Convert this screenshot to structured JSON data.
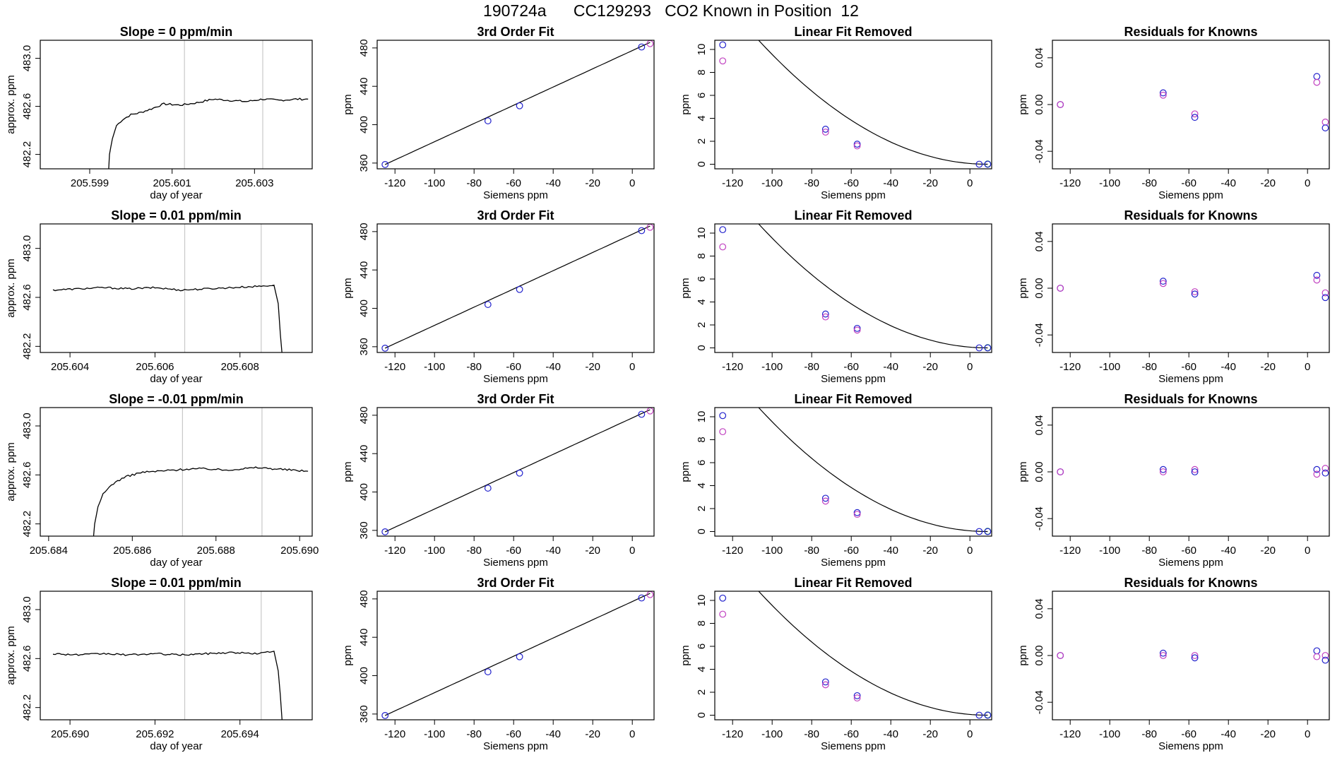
{
  "title": "190724a      CC129293   CO2 Known in Position  12",
  "colors": {
    "line": "#000000",
    "blue": "#2020cc",
    "magenta": "#c040c0",
    "green": "#20a040",
    "red": "#d02020",
    "vline": "#c8c8c8"
  },
  "chart_data": [
    {
      "type": "line",
      "row": 0,
      "panel": "time",
      "title": "Slope =  0  ppm/min",
      "xlabel": "day of year",
      "ylabel": "approx. ppm",
      "xlim": [
        205.5978,
        205.6044
      ],
      "ylim": [
        482.08,
        483.15
      ],
      "xticks": [
        205.599,
        205.601,
        205.603
      ],
      "yticks": [
        482.2,
        482.6,
        483.0
      ],
      "xtick_labels": [
        "205.599",
        "205.601",
        "205.603"
      ],
      "ytick_labels": [
        "482.2",
        "482.6",
        "483.0"
      ],
      "vlines": [
        205.6013,
        205.6032
      ],
      "x": [
        205.59945,
        205.59948,
        205.59955,
        205.59965,
        205.5998,
        205.6,
        205.60025,
        205.6005,
        205.6008,
        205.6012,
        205.6016,
        205.602,
        205.6024,
        205.6028,
        205.6032,
        205.6036,
        205.604,
        205.6043
      ],
      "y": [
        482.0,
        482.2,
        482.33,
        482.44,
        482.49,
        482.53,
        482.55,
        482.58,
        482.62,
        482.61,
        482.63,
        482.66,
        482.65,
        482.64,
        482.66,
        482.65,
        482.66,
        482.66
      ],
      "noise": 0.008
    },
    {
      "type": "line",
      "row": 1,
      "panel": "time",
      "title": "Slope =  0.01  ppm/min",
      "xlabel": "day of year",
      "ylabel": "approx. ppm",
      "xlim": [
        205.6033,
        205.6097
      ],
      "ylim": [
        482.15,
        483.2
      ],
      "xticks": [
        205.604,
        205.606,
        205.608
      ],
      "yticks": [
        482.2,
        482.6,
        483.0
      ],
      "xtick_labels": [
        "205.604",
        "205.606",
        "205.608"
      ],
      "ytick_labels": [
        "482.2",
        "482.6",
        "483.0"
      ],
      "vlines": [
        205.6067,
        205.6085
      ],
      "x": [
        205.6036,
        205.6042,
        205.6048,
        205.6054,
        205.606,
        205.6066,
        205.6072,
        205.6078,
        205.6084,
        205.6088,
        205.6089,
        205.60895,
        205.609
      ],
      "y": [
        482.66,
        482.67,
        482.68,
        482.67,
        482.68,
        482.66,
        482.67,
        482.68,
        482.69,
        482.7,
        482.55,
        482.3,
        482.1
      ],
      "noise": 0.007
    },
    {
      "type": "line",
      "row": 2,
      "panel": "time",
      "title": "Slope =  -0.01  ppm/min",
      "xlabel": "day of year",
      "ylabel": "approx. ppm",
      "xlim": [
        205.6838,
        205.6903
      ],
      "ylim": [
        482.1,
        483.15
      ],
      "xticks": [
        205.684,
        205.686,
        205.688,
        205.69
      ],
      "yticks": [
        482.2,
        482.6,
        483.0
      ],
      "xtick_labels": [
        "205.684",
        "205.686",
        "205.688",
        "205.690"
      ],
      "ytick_labels": [
        "482.2",
        "482.6",
        "483.0"
      ],
      "vlines": [
        205.6872,
        205.6891
      ],
      "x": [
        205.68505,
        205.6851,
        205.68518,
        205.6853,
        205.6855,
        205.6858,
        205.6862,
        205.6866,
        205.687,
        205.6874,
        205.6878,
        205.6882,
        205.6886,
        205.689,
        205.6894,
        205.6898,
        205.6902
      ],
      "y": [
        482.0,
        482.2,
        482.34,
        482.44,
        482.52,
        482.58,
        482.62,
        482.63,
        482.64,
        482.65,
        482.65,
        482.64,
        482.65,
        482.66,
        482.65,
        482.64,
        482.63
      ],
      "noise": 0.008
    },
    {
      "type": "line",
      "row": 3,
      "panel": "time",
      "title": "Slope =  0.01  ppm/min",
      "xlabel": "day of year",
      "ylabel": "approx. ppm",
      "xlim": [
        205.6893,
        205.6957
      ],
      "ylim": [
        482.1,
        483.15
      ],
      "xticks": [
        205.69,
        205.692,
        205.694
      ],
      "yticks": [
        482.2,
        482.6,
        483.0
      ],
      "xtick_labels": [
        "205.690",
        "205.692",
        "205.694"
      ],
      "ytick_labels": [
        "482.2",
        "482.6",
        "483.0"
      ],
      "vlines": [
        205.6927,
        205.6945
      ],
      "x": [
        205.6896,
        205.6902,
        205.6908,
        205.6914,
        205.692,
        205.6926,
        205.6932,
        205.6938,
        205.6944,
        205.6948,
        205.6949,
        205.69495,
        205.695
      ],
      "y": [
        482.64,
        482.63,
        482.64,
        482.63,
        482.64,
        482.63,
        482.64,
        482.65,
        482.64,
        482.66,
        482.5,
        482.3,
        482.05
      ],
      "noise": 0.007
    },
    {
      "type": "scatter",
      "row": 0,
      "panel": "fit",
      "title": "3rd Order Fit",
      "xlabel": "Siemens ppm",
      "ylabel": "ppm",
      "xlim": [
        -129,
        11
      ],
      "ylim": [
        354,
        488
      ],
      "xticks": [
        -120,
        -100,
        -80,
        -60,
        -40,
        -20,
        0
      ],
      "yticks": [
        360,
        400,
        440,
        480
      ],
      "xtick_labels": [
        "-120",
        "-100",
        "-80",
        "-60",
        "-40",
        "-20",
        "0"
      ],
      "ytick_labels": [
        "360",
        "400",
        "440",
        "480"
      ],
      "x": [
        -125,
        -73,
        -57,
        4.7,
        9
      ],
      "y": [
        358.5,
        404,
        419.7,
        481,
        484.5
      ],
      "point_colors": [
        "blue",
        "blue",
        "blue",
        "blue",
        "magenta"
      ]
    },
    {
      "type": "scatter",
      "row": 1,
      "panel": "fit",
      "title": "3rd Order Fit",
      "xlabel": "Siemens ppm",
      "ylabel": "ppm",
      "xlim": [
        -129,
        11
      ],
      "ylim": [
        354,
        488
      ],
      "xticks": [
        -120,
        -100,
        -80,
        -60,
        -40,
        -20,
        0
      ],
      "yticks": [
        360,
        400,
        440,
        480
      ],
      "xtick_labels": [
        "-120",
        "-100",
        "-80",
        "-60",
        "-40",
        "-20",
        "0"
      ],
      "ytick_labels": [
        "360",
        "400",
        "440",
        "480"
      ],
      "x": [
        -125,
        -73,
        -57,
        4.7,
        9
      ],
      "y": [
        358.5,
        404,
        419.7,
        481,
        484.5
      ],
      "point_colors": [
        "blue",
        "blue",
        "blue",
        "blue",
        "magenta"
      ]
    },
    {
      "type": "scatter",
      "row": 2,
      "panel": "fit",
      "title": "3rd Order Fit",
      "xlabel": "Siemens ppm",
      "ylabel": "ppm",
      "xlim": [
        -129,
        11
      ],
      "ylim": [
        354,
        488
      ],
      "xticks": [
        -120,
        -100,
        -80,
        -60,
        -40,
        -20,
        0
      ],
      "yticks": [
        360,
        400,
        440,
        480
      ],
      "xtick_labels": [
        "-120",
        "-100",
        "-80",
        "-60",
        "-40",
        "-20",
        "0"
      ],
      "ytick_labels": [
        "360",
        "400",
        "440",
        "480"
      ],
      "x": [
        -125,
        -73,
        -57,
        4.7,
        9
      ],
      "y": [
        358.5,
        404,
        419.7,
        481,
        484.5
      ],
      "point_colors": [
        "blue",
        "blue",
        "blue",
        "blue",
        "magenta"
      ]
    },
    {
      "type": "scatter",
      "row": 3,
      "panel": "fit",
      "title": "3rd Order Fit",
      "xlabel": "Siemens ppm",
      "ylabel": "ppm",
      "xlim": [
        -129,
        11
      ],
      "ylim": [
        354,
        488
      ],
      "xticks": [
        -120,
        -100,
        -80,
        -60,
        -40,
        -20,
        0
      ],
      "yticks": [
        360,
        400,
        440,
        480
      ],
      "xtick_labels": [
        "-120",
        "-100",
        "-80",
        "-60",
        "-40",
        "-20",
        "0"
      ],
      "ytick_labels": [
        "360",
        "400",
        "440",
        "480"
      ],
      "x": [
        -125,
        -73,
        -57,
        4.7,
        9
      ],
      "y": [
        358.5,
        404,
        419.7,
        481,
        484.5
      ],
      "point_colors": [
        "blue",
        "blue",
        "blue",
        "blue",
        "magenta"
      ]
    },
    {
      "type": "scatter",
      "row": 0,
      "panel": "linear",
      "title": "Linear Fit Removed",
      "xlabel": "Siemens ppm",
      "ylabel": "ppm",
      "xlim": [
        -129,
        11
      ],
      "ylim": [
        -0.4,
        10.8
      ],
      "xticks": [
        -120,
        -100,
        -80,
        -60,
        -40,
        -20,
        0
      ],
      "yticks": [
        0,
        2,
        4,
        6,
        8,
        10
      ],
      "xtick_labels": [
        "-120",
        "-100",
        "-80",
        "-60",
        "-40",
        "-20",
        "0"
      ],
      "ytick_labels": [
        "0",
        "2",
        "4",
        "6",
        "8",
        "10"
      ],
      "x": [
        -125,
        -125,
        -73,
        -73,
        -57,
        -57,
        4.7,
        9,
        9
      ],
      "y": [
        10.4,
        9.0,
        3.05,
        2.8,
        1.75,
        1.6,
        0.0,
        0.02,
        0.0
      ],
      "point_colors": [
        "blue",
        "magenta",
        "blue",
        "magenta",
        "blue",
        "magenta",
        "blue",
        "green",
        "blue"
      ]
    },
    {
      "type": "scatter",
      "row": 1,
      "panel": "linear",
      "title": "Linear Fit Removed",
      "xlabel": "Siemens ppm",
      "ylabel": "ppm",
      "xlim": [
        -129,
        11
      ],
      "ylim": [
        -0.4,
        10.8
      ],
      "xticks": [
        -120,
        -100,
        -80,
        -60,
        -40,
        -20,
        0
      ],
      "yticks": [
        0,
        2,
        4,
        6,
        8,
        10
      ],
      "xtick_labels": [
        "-120",
        "-100",
        "-80",
        "-60",
        "-40",
        "-20",
        "0"
      ],
      "ytick_labels": [
        "0",
        "2",
        "4",
        "6",
        "8",
        "10"
      ],
      "x": [
        -125,
        -125,
        -73,
        -73,
        -57,
        -57,
        4.7,
        9,
        9
      ],
      "y": [
        10.3,
        8.8,
        2.95,
        2.7,
        1.7,
        1.55,
        0.0,
        0.02,
        0.0
      ],
      "point_colors": [
        "blue",
        "magenta",
        "blue",
        "magenta",
        "blue",
        "magenta",
        "blue",
        "green",
        "blue"
      ]
    },
    {
      "type": "scatter",
      "row": 2,
      "panel": "linear",
      "title": "Linear Fit Removed",
      "xlabel": "Siemens ppm",
      "ylabel": "ppm",
      "xlim": [
        -129,
        11
      ],
      "ylim": [
        -0.4,
        10.8
      ],
      "xticks": [
        -120,
        -100,
        -80,
        -60,
        -40,
        -20,
        0
      ],
      "yticks": [
        0,
        2,
        4,
        6,
        8,
        10
      ],
      "xtick_labels": [
        "-120",
        "-100",
        "-80",
        "-60",
        "-40",
        "-20",
        "0"
      ],
      "ytick_labels": [
        "0",
        "2",
        "4",
        "6",
        "8",
        "10"
      ],
      "x": [
        -125,
        -125,
        -73,
        -73,
        -57,
        -57,
        4.7,
        9,
        9
      ],
      "y": [
        10.1,
        8.7,
        2.9,
        2.65,
        1.65,
        1.5,
        0.0,
        0.02,
        0.0
      ],
      "point_colors": [
        "blue",
        "magenta",
        "blue",
        "magenta",
        "blue",
        "magenta",
        "blue",
        "green",
        "blue"
      ]
    },
    {
      "type": "scatter",
      "row": 3,
      "panel": "linear",
      "title": "Linear Fit Removed",
      "xlabel": "Siemens ppm",
      "ylabel": "ppm",
      "xlim": [
        -129,
        11
      ],
      "ylim": [
        -0.4,
        10.8
      ],
      "xticks": [
        -120,
        -100,
        -80,
        -60,
        -40,
        -20,
        0
      ],
      "yticks": [
        0,
        2,
        4,
        6,
        8,
        10
      ],
      "xtick_labels": [
        "-120",
        "-100",
        "-80",
        "-60",
        "-40",
        "-20",
        "0"
      ],
      "ytick_labels": [
        "0",
        "2",
        "4",
        "6",
        "8",
        "10"
      ],
      "x": [
        -125,
        -125,
        -73,
        -73,
        -57,
        -57,
        4.7,
        9,
        9
      ],
      "y": [
        10.2,
        8.8,
        2.9,
        2.65,
        1.7,
        1.5,
        0.0,
        0.02,
        0.0
      ],
      "point_colors": [
        "blue",
        "magenta",
        "blue",
        "magenta",
        "blue",
        "magenta",
        "blue",
        "green",
        "blue"
      ]
    },
    {
      "type": "scatter",
      "row": 0,
      "panel": "resid",
      "title": "Residuals for Knowns",
      "xlabel": "Siemens ppm",
      "ylabel": "ppm",
      "xlim": [
        -129,
        11
      ],
      "ylim": [
        -0.055,
        0.055
      ],
      "xticks": [
        -120,
        -100,
        -80,
        -60,
        -40,
        -20,
        0
      ],
      "yticks": [
        -0.04,
        0.0,
        0.04
      ],
      "xtick_labels": [
        "-120",
        "-100",
        "-80",
        "-60",
        "-40",
        "-20",
        "0"
      ],
      "ytick_labels": [
        "-0.04",
        "0.00",
        "0.04"
      ],
      "x": [
        -125,
        -125,
        -73,
        -73,
        -57,
        -57,
        4.7,
        4.7,
        9,
        9
      ],
      "y": [
        0.0,
        0.0,
        0.01,
        0.008,
        -0.008,
        -0.011,
        0.024,
        0.019,
        -0.015,
        -0.02
      ],
      "point_colors": [
        "blue",
        "magenta",
        "blue",
        "magenta",
        "magenta",
        "blue",
        "blue",
        "magenta",
        "magenta",
        "blue"
      ]
    },
    {
      "type": "scatter",
      "row": 1,
      "panel": "resid",
      "title": "Residuals for Knowns",
      "xlabel": "Siemens ppm",
      "ylabel": "ppm",
      "xlim": [
        -129,
        11
      ],
      "ylim": [
        -0.055,
        0.055
      ],
      "xticks": [
        -120,
        -100,
        -80,
        -60,
        -40,
        -20,
        0
      ],
      "yticks": [
        -0.04,
        0.0,
        0.04
      ],
      "xtick_labels": [
        "-120",
        "-100",
        "-80",
        "-60",
        "-40",
        "-20",
        "0"
      ],
      "ytick_labels": [
        "-0.04",
        "0.00",
        "0.04"
      ],
      "x": [
        -125,
        -125,
        -73,
        -73,
        -57,
        -57,
        4.7,
        4.7,
        9,
        9
      ],
      "y": [
        0.0,
        0.0,
        0.006,
        0.004,
        -0.003,
        -0.005,
        0.011,
        0.007,
        -0.004,
        -0.008
      ],
      "point_colors": [
        "blue",
        "magenta",
        "blue",
        "magenta",
        "magenta",
        "blue",
        "blue",
        "magenta",
        "magenta",
        "blue"
      ]
    },
    {
      "type": "scatter",
      "row": 2,
      "panel": "resid",
      "title": "Residuals for Knowns",
      "xlabel": "Siemens ppm",
      "ylabel": "ppm",
      "xlim": [
        -129,
        11
      ],
      "ylim": [
        -0.055,
        0.055
      ],
      "xticks": [
        -120,
        -100,
        -80,
        -60,
        -40,
        -20,
        0
      ],
      "yticks": [
        -0.04,
        0.0,
        0.04
      ],
      "xtick_labels": [
        "-120",
        "-100",
        "-80",
        "-60",
        "-40",
        "-20",
        "0"
      ],
      "ytick_labels": [
        "-0.04",
        "0.00",
        "0.04"
      ],
      "x": [
        -125,
        -125,
        -73,
        -73,
        -57,
        -57,
        4.7,
        4.7,
        9,
        9
      ],
      "y": [
        0.0,
        0.0,
        0.002,
        0.0,
        0.002,
        0.0,
        0.002,
        -0.002,
        0.003,
        -0.001
      ],
      "point_colors": [
        "blue",
        "magenta",
        "blue",
        "magenta",
        "magenta",
        "blue",
        "blue",
        "magenta",
        "magenta",
        "blue"
      ]
    },
    {
      "type": "scatter",
      "row": 3,
      "panel": "resid",
      "title": "Residuals for Knowns",
      "xlabel": "Siemens ppm",
      "ylabel": "ppm",
      "xlim": [
        -129,
        11
      ],
      "ylim": [
        -0.055,
        0.055
      ],
      "xticks": [
        -120,
        -100,
        -80,
        -60,
        -40,
        -20,
        0
      ],
      "yticks": [
        -0.04,
        0.0,
        0.04
      ],
      "xtick_labels": [
        "-120",
        "-100",
        "-80",
        "-60",
        "-40",
        "-20",
        "0"
      ],
      "ytick_labels": [
        "-0.04",
        "0.00",
        "0.04"
      ],
      "x": [
        -125,
        -125,
        -73,
        -73,
        -57,
        -57,
        4.7,
        4.7,
        9,
        9
      ],
      "y": [
        0.0,
        0.0,
        0.002,
        0.0,
        0.0,
        -0.002,
        0.004,
        -0.001,
        0.0,
        -0.004
      ],
      "point_colors": [
        "blue",
        "magenta",
        "blue",
        "magenta",
        "magenta",
        "blue",
        "blue",
        "magenta",
        "magenta",
        "blue"
      ]
    }
  ]
}
